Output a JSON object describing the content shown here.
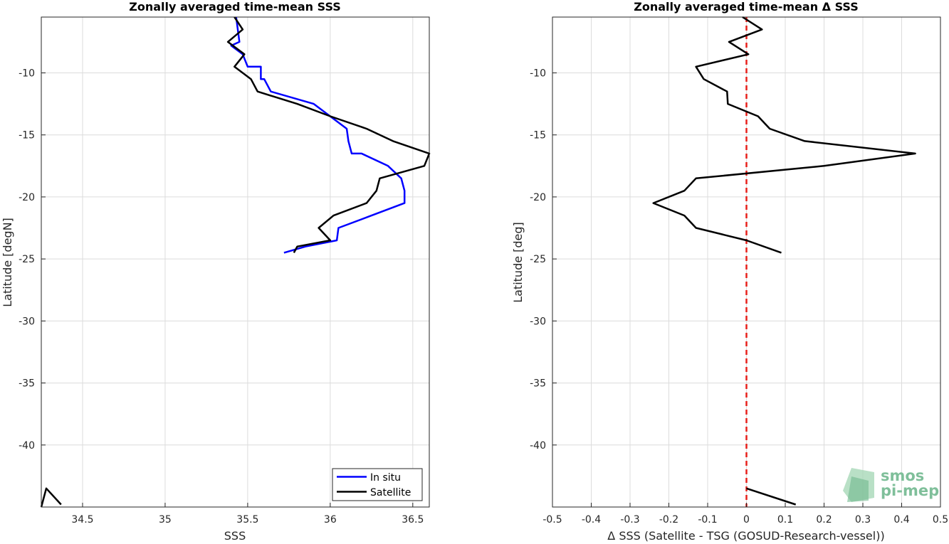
{
  "chart_data": [
    {
      "type": "line",
      "title": "Zonally averaged time-mean SSS",
      "xlabel": "SSS",
      "ylabel": "Latitude [degN]",
      "xlim": [
        34.25,
        36.6
      ],
      "ylim": [
        -45,
        -5.5
      ],
      "xticks": [
        34.5,
        35,
        35.5,
        36,
        36.5
      ],
      "yticks": [
        -10,
        -15,
        -20,
        -25,
        -30,
        -35,
        -40
      ],
      "grid": true,
      "legend_position": "bottom-right",
      "series": [
        {
          "name": "In situ",
          "color": "#0000ff",
          "x": [
            35.43,
            35.44,
            35.45,
            35.4,
            35.47,
            35.5,
            35.58,
            35.58,
            35.6,
            35.64,
            35.9,
            36.1,
            36.11,
            36.13,
            36.19,
            36.35,
            36.43,
            36.45,
            36.45,
            36.25,
            36.05,
            36.04,
            35.85,
            35.72
          ],
          "y": [
            -5.5,
            -6.5,
            -7.5,
            -7.8,
            -8.5,
            -9.5,
            -9.5,
            -10.5,
            -10.5,
            -11.5,
            -12.5,
            -14.5,
            -15.5,
            -16.5,
            -16.5,
            -17.5,
            -18.5,
            -19.5,
            -20.5,
            -21.5,
            -22.5,
            -23.5,
            -24.0,
            -24.5
          ],
          "segments": []
        },
        {
          "name": "Satellite",
          "color": "#000000",
          "x": [
            35.42,
            35.47,
            35.38,
            35.48,
            35.42,
            35.52,
            35.56,
            35.8,
            36.0,
            36.22,
            36.38,
            36.6,
            36.57,
            36.3,
            36.28,
            36.22,
            36.02,
            35.93,
            36.0,
            35.8,
            35.78
          ],
          "y": [
            -5.5,
            -6.5,
            -7.5,
            -8.5,
            -9.5,
            -10.5,
            -11.5,
            -12.5,
            -13.5,
            -14.5,
            -15.5,
            -16.5,
            -17.5,
            -18.5,
            -19.5,
            -20.5,
            -21.5,
            -22.5,
            -23.5,
            -24.0,
            -24.5
          ],
          "segments": [
            {
              "x": [
                34.25,
                34.28,
                34.37
              ],
              "y": [
                -45,
                -43.5,
                -44.8
              ]
            }
          ]
        }
      ]
    },
    {
      "type": "line",
      "title": "Zonally averaged time-mean Δ SSS",
      "xlabel": "Δ SSS (Satellite - TSG (GOSUD-Research-vessel))",
      "ylabel": "Latitude [deg]",
      "xlim": [
        -0.5,
        0.5
      ],
      "ylim": [
        -45,
        -5.5
      ],
      "xticks": [
        -0.5,
        -0.4,
        -0.3,
        -0.2,
        -0.1,
        0,
        0.1,
        0.2,
        0.3,
        0.4,
        0.5
      ],
      "yticks": [
        -10,
        -15,
        -20,
        -25,
        -30,
        -35,
        -40
      ],
      "grid": true,
      "zero_line_color": "#e8201b",
      "series": [
        {
          "color": "#000000",
          "x": [
            -0.01,
            0.04,
            -0.045,
            0.005,
            -0.13,
            -0.11,
            -0.05,
            -0.048,
            0.03,
            0.06,
            0.15,
            0.435,
            0.2,
            -0.13,
            -0.16,
            -0.24,
            -0.16,
            -0.13,
            0.0,
            0.09
          ],
          "y": [
            -5.5,
            -6.5,
            -7.5,
            -8.5,
            -9.5,
            -10.5,
            -11.5,
            -12.5,
            -13.5,
            -14.5,
            -15.5,
            -16.5,
            -17.5,
            -18.5,
            -19.5,
            -20.5,
            -21.5,
            -22.5,
            -23.5,
            -24.5
          ],
          "segments": [
            {
              "x": [
                0.0,
                0.127
              ],
              "y": [
                -43.5,
                -44.8
              ]
            }
          ]
        }
      ]
    }
  ],
  "logo": {
    "line1": "smos",
    "line2": "pi-mep"
  }
}
